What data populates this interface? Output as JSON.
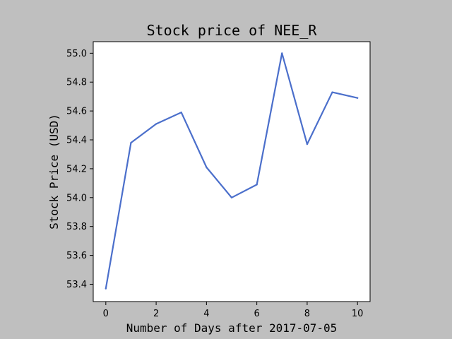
{
  "chart_data": {
    "type": "line",
    "title": "Stock price of NEE_R",
    "xlabel": "Number of Days after 2017-07-05",
    "ylabel": "Stock Price (USD)",
    "x": [
      0,
      1,
      2,
      3,
      4,
      5,
      6,
      7,
      8,
      9,
      10
    ],
    "series": [
      {
        "values": [
          53.37,
          54.38,
          54.51,
          54.59,
          54.21,
          54.0,
          54.09,
          55.0,
          54.37,
          54.73,
          54.69
        ],
        "color": "#4b6fcb"
      }
    ],
    "xlim": [
      -0.5,
      10.5
    ],
    "ylim": [
      53.28,
      55.08
    ],
    "xticks": [
      "0",
      "2",
      "4",
      "6",
      "8",
      "10"
    ],
    "yticks": [
      "53.4",
      "53.6",
      "53.8",
      "54.0",
      "54.2",
      "54.4",
      "54.6",
      "54.8",
      "55.0"
    ],
    "grid": false,
    "legend": "none",
    "background_color": "#bfbfbf",
    "plot_area_color": "#ffffff"
  }
}
